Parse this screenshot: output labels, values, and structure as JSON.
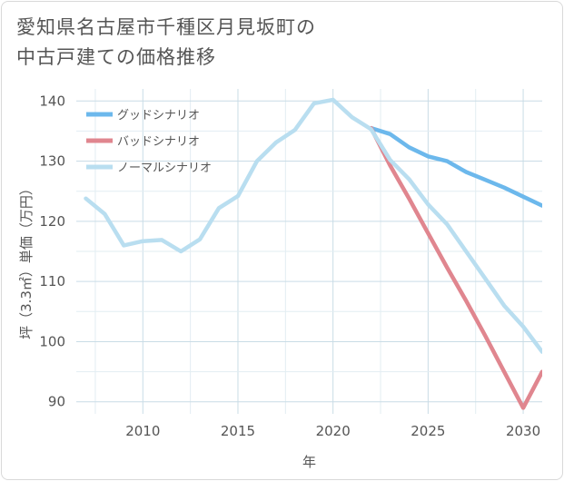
{
  "title": {
    "line1": "愛知県名古屋市千種区月見坂町の",
    "line2": "中古戸建ての価格推移"
  },
  "chart_data": {
    "type": "line",
    "xlabel": "年",
    "ylabel": "坪（3.3㎡）単価（万円）",
    "xlim": [
      2006.5,
      2031
    ],
    "ylim": [
      88,
      142
    ],
    "xticks": [
      2010,
      2015,
      2020,
      2025,
      2030
    ],
    "yticks": [
      90,
      100,
      110,
      120,
      130,
      140
    ],
    "grid": true,
    "legend_position": "top-left",
    "series": [
      {
        "name": "グッドシナリオ",
        "color": "#6cb8ec",
        "x": [
          2022,
          2023,
          2024,
          2025,
          2026,
          2027,
          2028,
          2029,
          2030,
          2031
        ],
        "values": [
          135.5,
          134.5,
          132.3,
          130.8,
          130.0,
          128.2,
          126.9,
          125.6,
          124.1,
          122.6
        ]
      },
      {
        "name": "バッドシナリオ",
        "color": "#e0868f",
        "x": [
          2022,
          2023,
          2024,
          2025,
          2026,
          2027,
          2028,
          2029,
          2030,
          2031
        ],
        "values": [
          135.5,
          129.3,
          123.8,
          118.0,
          112.3,
          106.8,
          101.0,
          95.0,
          89.0,
          95.0
        ]
      },
      {
        "name": "ノーマルシナリオ",
        "color": "#b9def0",
        "x": [
          2007,
          2008,
          2009,
          2010,
          2011,
          2012,
          2013,
          2014,
          2015,
          2016,
          2017,
          2018,
          2019,
          2020,
          2021,
          2022,
          2023,
          2024,
          2025,
          2026,
          2027,
          2028,
          2029,
          2030,
          2031
        ],
        "values": [
          123.8,
          121.2,
          116.0,
          116.7,
          116.9,
          115.0,
          117.0,
          122.2,
          124.2,
          130.0,
          133.1,
          135.2,
          139.6,
          140.2,
          137.3,
          135.3,
          130.2,
          127.0,
          122.8,
          119.5,
          115.0,
          110.5,
          106.0,
          102.5,
          98.3
        ]
      }
    ]
  }
}
